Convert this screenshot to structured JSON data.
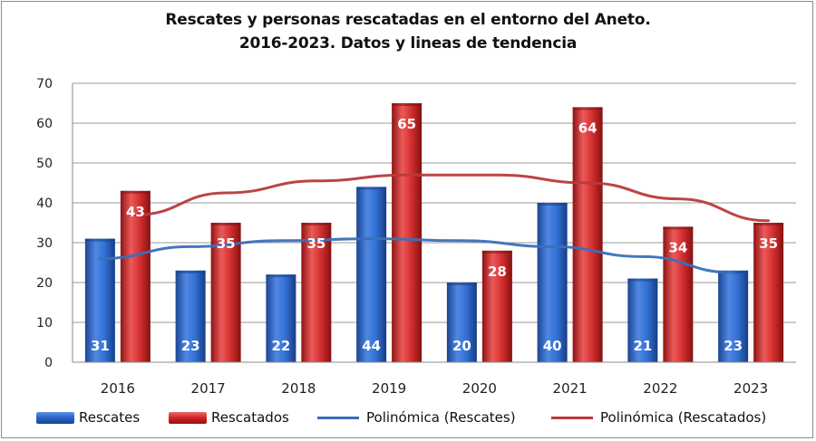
{
  "title": {
    "line1": "Rescates y personas rescatadas en el entorno del Aneto.",
    "line2": "2016-2023.  Datos y lineas de tendencia"
  },
  "legend": {
    "rescates": "Rescates",
    "rescatados": "Rescatados",
    "poly_rescates": "Polinómica (Rescates)",
    "poly_rescatados": "Polinómica (Rescatados)"
  },
  "colors": {
    "rescates": "#2a62c8",
    "rescatados": "#cf2424",
    "trend_rescates": "#3b6fb8",
    "trend_rescatados": "#b83a3a",
    "grid": "#9a9a9a"
  },
  "chart_data": {
    "type": "bar",
    "title": "Rescates y personas rescatadas en el entorno del Aneto. 2016-2023. Datos y lineas de tendencia",
    "categories": [
      "2016",
      "2017",
      "2018",
      "2019",
      "2020",
      "2021",
      "2022",
      "2023"
    ],
    "series": [
      {
        "name": "Rescates",
        "values": [
          31,
          23,
          22,
          44,
          20,
          40,
          21,
          23
        ]
      },
      {
        "name": "Rescatados",
        "values": [
          43,
          35,
          35,
          65,
          28,
          64,
          34,
          35
        ]
      }
    ],
    "trendlines": [
      {
        "name": "Polinómica (Rescates)",
        "of": "Rescates",
        "values": [
          26.0,
          29.0,
          30.5,
          31.0,
          30.5,
          29.0,
          26.5,
          22.5
        ]
      },
      {
        "name": "Polinómica (Rescatados)",
        "of": "Rescatados",
        "values": [
          37.0,
          42.5,
          45.5,
          47.0,
          47.0,
          45.0,
          41.0,
          35.5
        ]
      }
    ],
    "yticks": [
      "0",
      "10",
      "20",
      "30",
      "40",
      "50",
      "60",
      "70"
    ],
    "ylim": [
      0,
      70
    ],
    "xlabel": "",
    "ylabel": "",
    "grid": true,
    "legend_position": "bottom"
  }
}
